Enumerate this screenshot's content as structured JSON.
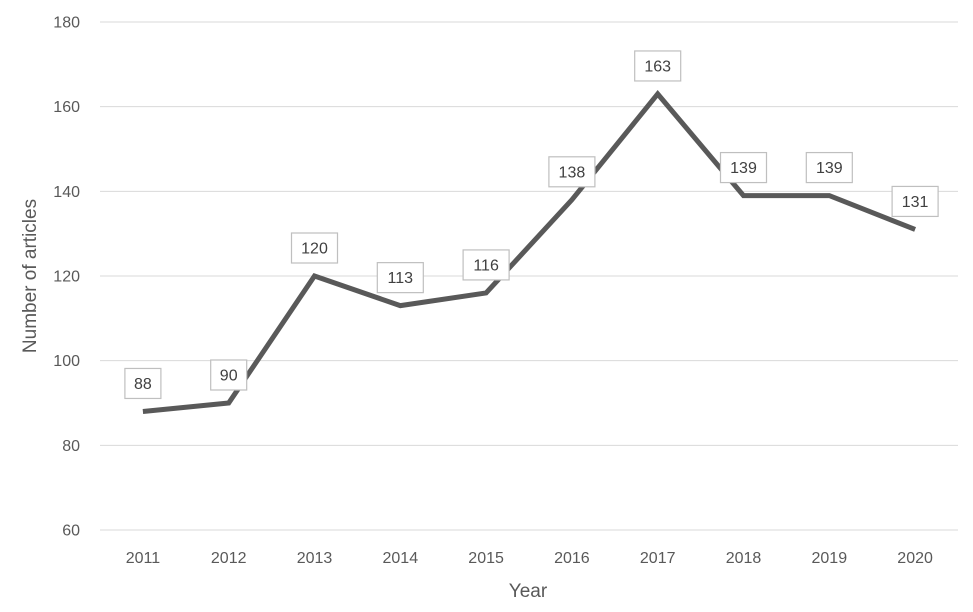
{
  "chart_data": {
    "type": "line",
    "title": "",
    "xlabel": "Year",
    "ylabel": "Number of articles",
    "categories": [
      "2011",
      "2012",
      "2013",
      "2014",
      "2015",
      "2016",
      "2017",
      "2018",
      "2019",
      "2020"
    ],
    "series": [
      {
        "values": [
          88,
          90,
          120,
          113,
          116,
          138,
          163,
          139,
          139,
          131
        ],
        "color": "#595959"
      }
    ],
    "ylim": [
      60,
      180
    ],
    "yticks": [
      60,
      80,
      100,
      120,
      140,
      160,
      180
    ],
    "grid": true,
    "legend": "none",
    "data_labels": true
  }
}
